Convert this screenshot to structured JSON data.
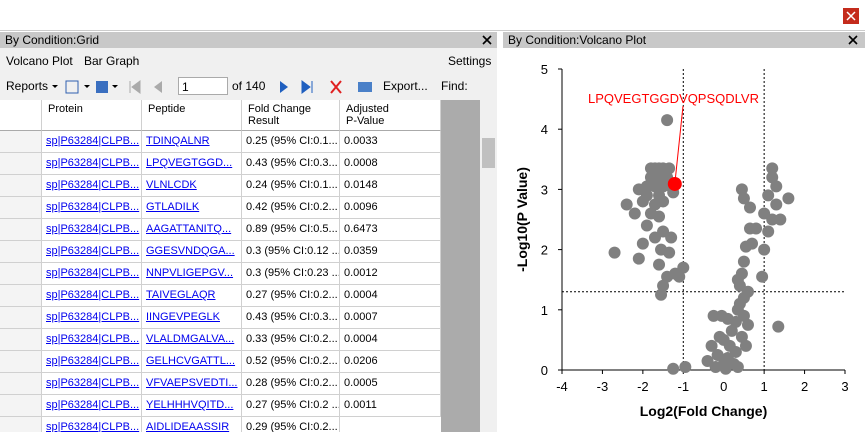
{
  "grid_panel": {
    "title": "By Condition:Grid",
    "menu": [
      "Volcano Plot",
      "Bar Graph"
    ],
    "settings": "Settings",
    "toolbar": {
      "reports": "Reports",
      "page": "1",
      "of": "of 140",
      "export": "Export...",
      "find": "Find:"
    },
    "columns": [
      "Protein",
      "Peptide",
      "Fold Change\nResult",
      "Adjusted\nP-Value"
    ],
    "rows": [
      [
        "sp|P63284|CLPB...",
        "TDINQALNR",
        "0.25 (95% CI:0.1...",
        "0.0033"
      ],
      [
        "sp|P63284|CLPB...",
        "LPQVEGTGGD...",
        "0.43 (95% CI:0.3...",
        "0.0008"
      ],
      [
        "sp|P63284|CLPB...",
        "VLNLCDK",
        "0.24 (95% CI:0.1...",
        "0.0148"
      ],
      [
        "sp|P63284|CLPB...",
        "GTLADILK",
        "0.42 (95% CI:0.2...",
        "0.0096"
      ],
      [
        "sp|P63284|CLPB...",
        "AAGATTANITQ...",
        "0.89 (95% CI:0.5...",
        "0.6473"
      ],
      [
        "sp|P63284|CLPB...",
        "GGESVNDQGA...",
        "0.3 (95% CI:0.12 ...",
        "0.0359"
      ],
      [
        "sp|P63284|CLPB...",
        "NNPVLIGEPGV...",
        "0.3 (95% CI:0.23 ...",
        "0.0012"
      ],
      [
        "sp|P63284|CLPB...",
        "TAIVEGLAQR",
        "0.27 (95% CI:0.2...",
        "0.0004"
      ],
      [
        "sp|P63284|CLPB...",
        "IINGEVPEGLK",
        "0.43 (95% CI:0.3...",
        "0.0007"
      ],
      [
        "sp|P63284|CLPB...",
        "VLALDMGALVA...",
        "0.33 (95% CI:0.2...",
        "0.0004"
      ],
      [
        "sp|P63284|CLPB...",
        "GELHCVGATTL...",
        "0.52 (95% CI:0.2...",
        "0.0206"
      ],
      [
        "sp|P63284|CLPB...",
        "VFVAEPSVEDTI...",
        "0.28 (95% CI:0.2...",
        "0.0005"
      ],
      [
        "sp|P63284|CLPB...",
        "YELHHHVQITD...",
        "0.27 (95% CI:0.2 ...",
        "0.0011"
      ],
      [
        "sp|P63284|CLPB...",
        "AIDLIDEAASSIR",
        "0.29 (95% CI:0.2..."
      ]
    ]
  },
  "plot_panel": {
    "title": "By Condition:Volcano Plot"
  },
  "chart_data": {
    "type": "scatter",
    "xlabel": "Log2(Fold Change)",
    "ylabel": "-Log10(P Value)",
    "xlim": [
      -4,
      3
    ],
    "xticks": [
      -4,
      -3,
      -2,
      -1,
      0,
      1,
      2,
      3
    ],
    "ylim": [
      0,
      5
    ],
    "yticks": [
      0,
      1,
      2,
      3,
      4,
      5
    ],
    "thresholds": {
      "x": [
        -1,
        1
      ],
      "y": 1.3
    },
    "color": "#808080",
    "x": [
      -1.4,
      -1.8,
      -1.7,
      -1.6,
      -1.5,
      -1.35,
      -1.8,
      -1.6,
      -1.4,
      -1.9,
      -1.7,
      -1.5,
      -1.3,
      -2.1,
      -1.9,
      -1.6,
      -1.25,
      -2.0,
      -1.7,
      -1.5,
      -2.4,
      -2.2,
      -1.8,
      -1.6,
      -1.9,
      -1.5,
      -1.7,
      -1.3,
      -2.0,
      -1.55,
      -1.35,
      -2.7,
      -2.1,
      -1.6,
      -1.0,
      -1.4,
      -1.1,
      -1.5,
      -1.55,
      -1.2,
      1.2,
      1.2,
      1.3,
      1.1,
      0.45,
      0.5,
      1.6,
      0.65,
      1.3,
      1.0,
      1.2,
      1.4,
      0.8,
      0.65,
      1.1,
      0.7,
      0.55,
      1.0,
      0.5,
      0.45,
      0.35,
      0.4,
      0.95,
      0.6,
      0.5,
      0.4,
      0.35,
      0.1,
      0.5,
      -0.25,
      -0.05,
      0.3,
      0.6,
      1.35,
      0.2,
      -0.1,
      0.45,
      0.0,
      -0.3,
      0.15,
      0.55,
      0.3,
      -0.15,
      0.1,
      -0.4,
      0.0,
      0.25,
      -0.2,
      0.05,
      0.35,
      -0.95,
      -1.25
    ],
    "values": [
      4.15,
      3.35,
      3.35,
      3.35,
      3.35,
      3.35,
      3.2,
      3.2,
      3.2,
      3.05,
      3.05,
      3.05,
      3.05,
      3.0,
      2.9,
      2.9,
      2.95,
      2.8,
      2.75,
      2.8,
      2.75,
      2.6,
      2.6,
      2.55,
      2.4,
      2.3,
      2.2,
      2.2,
      2.1,
      2.0,
      1.95,
      1.95,
      1.85,
      1.75,
      1.7,
      1.55,
      1.55,
      1.4,
      1.25,
      1.6,
      3.35,
      3.2,
      3.05,
      2.9,
      3.0,
      2.85,
      2.85,
      2.7,
      2.75,
      2.6,
      2.5,
      2.5,
      2.35,
      2.35,
      2.3,
      2.1,
      2.05,
      2.0,
      1.8,
      1.6,
      1.5,
      1.4,
      1.55,
      1.3,
      1.2,
      1.1,
      1.0,
      0.85,
      0.9,
      0.9,
      0.9,
      0.8,
      0.75,
      0.72,
      0.65,
      0.55,
      0.55,
      0.5,
      0.4,
      0.4,
      0.4,
      0.3,
      0.25,
      0.2,
      0.15,
      0.1,
      0.1,
      0.05,
      0.02,
      0.05,
      0.05,
      0.02
    ],
    "highlight": {
      "label": "LPQVEGTGGDVQPSQDLVR",
      "x": -1.21,
      "y": 3.09,
      "color": "#ff0000"
    }
  }
}
